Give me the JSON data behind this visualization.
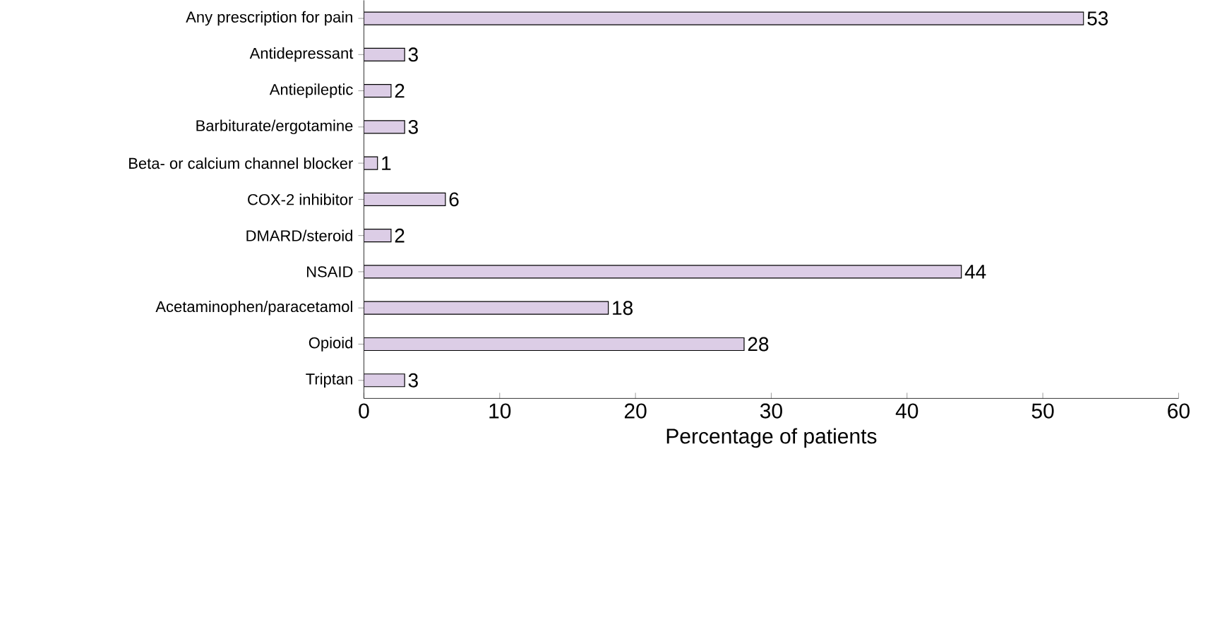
{
  "chart_data": {
    "type": "bar",
    "orientation": "horizontal",
    "xlabel": "Percentage of patients",
    "categories": [
      "Any prescription for pain",
      "Antidepressant",
      "Antiepileptic",
      "Barbiturate/ergotamine",
      "Beta- or calcium channel blocker",
      "COX-2 inhibitor",
      "DMARD/steroid",
      "NSAID",
      "Acetaminophen/paracetamol",
      "Opioid",
      "Triptan"
    ],
    "values": [
      53,
      3,
      2,
      3,
      1,
      6,
      2,
      44,
      18,
      28,
      3
    ],
    "color": "#dccde6",
    "xlim": [
      0,
      60
    ],
    "xticks": [
      0,
      10,
      20,
      30,
      40,
      50,
      60
    ],
    "data_labels": true,
    "grid": false
  }
}
